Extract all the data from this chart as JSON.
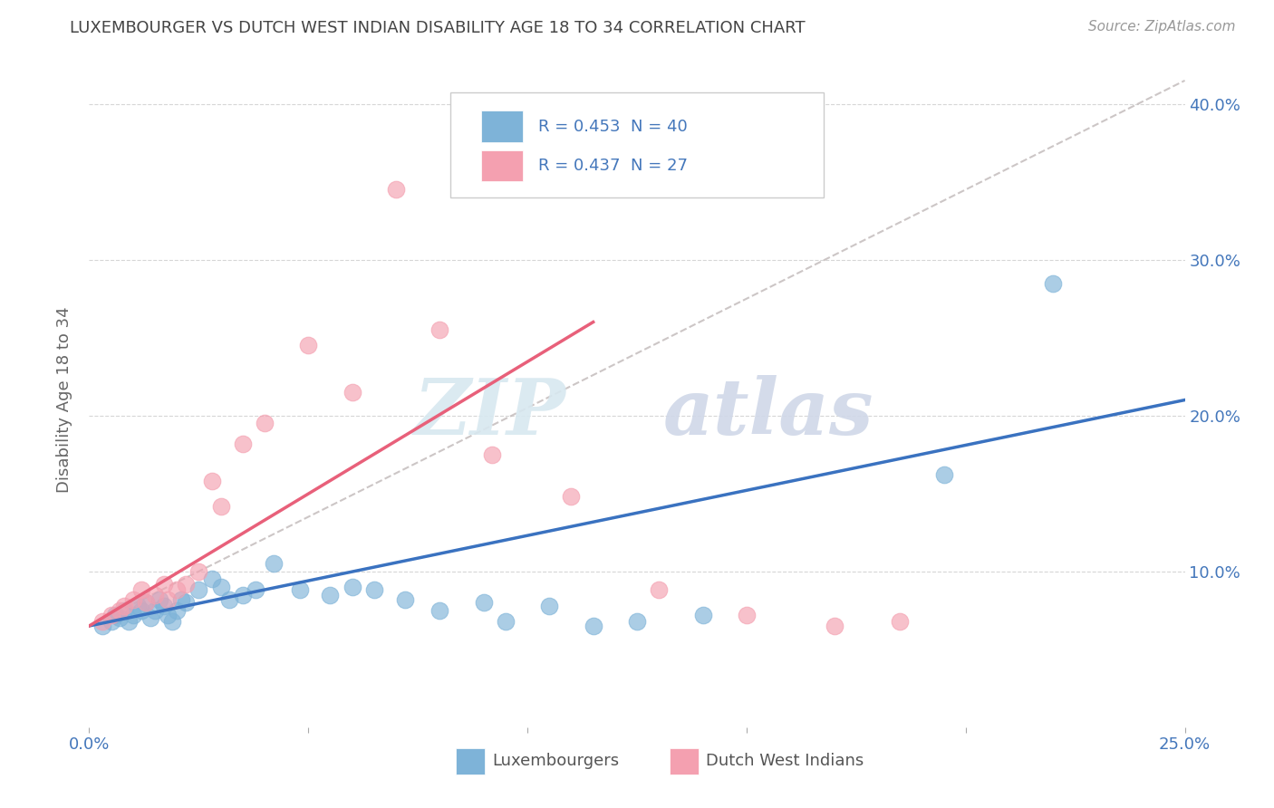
{
  "title": "LUXEMBOURGER VS DUTCH WEST INDIAN DISABILITY AGE 18 TO 34 CORRELATION CHART",
  "source": "Source: ZipAtlas.com",
  "ylabel": "Disability Age 18 to 34",
  "xlim": [
    0.0,
    0.25
  ],
  "ylim": [
    0.0,
    0.42
  ],
  "blue_color": "#7EB3D8",
  "pink_color": "#F4A0B0",
  "blue_line_color": "#3A72C0",
  "pink_line_color": "#E8607A",
  "dashed_line_color": "#C0B8B8",
  "legend_label_blue": "Luxembourgers",
  "legend_label_pink": "Dutch West Indians",
  "text_color": "#4477BB",
  "title_color": "#444444",
  "blue_scatter_x": [
    0.003,
    0.005,
    0.006,
    0.007,
    0.008,
    0.009,
    0.01,
    0.011,
    0.012,
    0.013,
    0.014,
    0.015,
    0.016,
    0.017,
    0.018,
    0.019,
    0.02,
    0.021,
    0.022,
    0.025,
    0.028,
    0.03,
    0.032,
    0.035,
    0.038,
    0.042,
    0.048,
    0.055,
    0.06,
    0.065,
    0.072,
    0.08,
    0.09,
    0.095,
    0.105,
    0.115,
    0.125,
    0.14,
    0.195,
    0.22
  ],
  "blue_scatter_y": [
    0.065,
    0.068,
    0.072,
    0.07,
    0.075,
    0.068,
    0.072,
    0.078,
    0.075,
    0.08,
    0.07,
    0.075,
    0.082,
    0.078,
    0.072,
    0.068,
    0.075,
    0.082,
    0.08,
    0.088,
    0.095,
    0.09,
    0.082,
    0.085,
    0.088,
    0.105,
    0.088,
    0.085,
    0.09,
    0.088,
    0.082,
    0.075,
    0.08,
    0.068,
    0.078,
    0.065,
    0.068,
    0.072,
    0.162,
    0.285
  ],
  "pink_scatter_x": [
    0.003,
    0.005,
    0.007,
    0.008,
    0.01,
    0.012,
    0.013,
    0.015,
    0.017,
    0.018,
    0.02,
    0.022,
    0.025,
    0.028,
    0.03,
    0.035,
    0.04,
    0.05,
    0.06,
    0.07,
    0.08,
    0.092,
    0.11,
    0.13,
    0.15,
    0.17,
    0.185
  ],
  "pink_scatter_y": [
    0.068,
    0.072,
    0.075,
    0.078,
    0.082,
    0.088,
    0.08,
    0.085,
    0.092,
    0.082,
    0.088,
    0.092,
    0.1,
    0.158,
    0.142,
    0.182,
    0.195,
    0.245,
    0.215,
    0.345,
    0.255,
    0.175,
    0.148,
    0.088,
    0.072,
    0.065,
    0.068
  ],
  "blue_line_x1": 0.0,
  "blue_line_y1": 0.065,
  "blue_line_x2": 0.25,
  "blue_line_y2": 0.21,
  "pink_line_x1": 0.0,
  "pink_line_y1": 0.065,
  "pink_line_x2": 0.115,
  "pink_line_y2": 0.26,
  "dash_line_x1": 0.0,
  "dash_line_y1": 0.065,
  "dash_line_x2": 0.25,
  "dash_line_y2": 0.415
}
